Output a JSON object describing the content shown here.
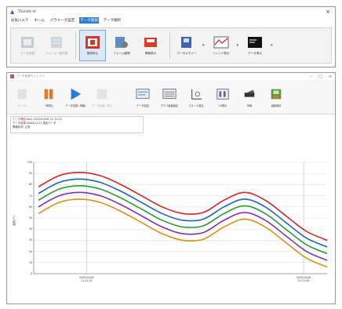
{
  "window_top": {
    "title": "TSchiitt IV",
    "close_glyph": "×",
    "menu": [
      "お気に入り",
      "ホーム",
      "パラメータ設定",
      "データ集録",
      "データ解析"
    ],
    "active_menu_index": 3,
    "ribbon": [
      {
        "label": "データ記録",
        "icon": "record-icon",
        "dim": true
      },
      {
        "label": "フォーム一覧作成",
        "icon": "form-icon",
        "dim": true
      },
      {
        "label": "集録停止",
        "icon": "stop-record-icon",
        "dim": false,
        "selected": true
      },
      {
        "label": "フォーム管理",
        "icon": "form-manage-icon",
        "dim": false
      },
      {
        "label": "警報表示",
        "icon": "alarm-icon",
        "dim": false
      },
      {
        "label": "データメモリー",
        "icon": "memory-icon",
        "dim": false,
        "dropdown": true
      },
      {
        "label": "トレンド表示",
        "icon": "trend-icon",
        "dim": false,
        "dropdown": true
      },
      {
        "label": "データ表示",
        "icon": "data-display-icon",
        "dim": false,
        "dropdown": true
      }
    ]
  },
  "window_app": {
    "title": "データ記録ウィンドウ",
    "toolbar": [
      {
        "label": "ファイル",
        "icon": "file-icon",
        "dim": true
      },
      {
        "label": "一時停止",
        "icon": "pause-icon",
        "dim": false
      },
      {
        "label": "データ記録 / 開始",
        "icon": "play-icon",
        "dim": false
      },
      {
        "label": "データ記録 / 停止",
        "icon": "stop-icon",
        "dim": true
      },
      {
        "label": "データ設定",
        "icon": "data-setting-icon",
        "dim": false
      },
      {
        "label": "グラフ画面設定",
        "icon": "graph-setting-icon",
        "dim": false
      },
      {
        "label": "スケール設定",
        "icon": "scale-icon",
        "dim": false
      },
      {
        "label": "CH表示",
        "icon": "ch-icon",
        "dim": false
      },
      {
        "label": "印刷",
        "icon": "print-icon",
        "dim": false
      },
      {
        "label": "画像保存",
        "icon": "save-image-icon",
        "dim": false
      }
    ],
    "info": {
      "line1_red": "データ開始",
      "line1_rest": "  No.1          2020/10/26  11:11:15",
      "line2": "データ名称      AAAA-1111  測定データ",
      "line3": "警報状況:  正常"
    }
  },
  "chart_data": {
    "type": "line",
    "yticks": [
      "100",
      "90",
      "80",
      "70",
      "60",
      "50",
      "40",
      "30",
      "20",
      "10",
      "0"
    ],
    "ylim": [
      0,
      100
    ],
    "ylabel": "温度(℃)",
    "xticks": [
      {
        "label_line1": "2020/10/26",
        "label_line2": "11:11:15",
        "pos": 0.18
      },
      {
        "label_line1": "2020/10/26",
        "label_line2": "11:11:45",
        "pos": 0.92
      }
    ],
    "grid": true,
    "series": [
      {
        "color": "#e02020",
        "values": [
          78,
          88,
          91,
          88,
          80,
          70,
          60,
          54,
          55,
          66,
          73,
          66,
          52,
          38,
          30
        ]
      },
      {
        "color": "#2060d0",
        "values": [
          72,
          82,
          85,
          82,
          74,
          64,
          54,
          48,
          49,
          60,
          67,
          60,
          46,
          32,
          24
        ]
      },
      {
        "color": "#20a030",
        "values": [
          66,
          76,
          79,
          76,
          68,
          58,
          48,
          42,
          43,
          54,
          61,
          54,
          40,
          26,
          18
        ]
      },
      {
        "color": "#8030b0",
        "values": [
          60,
          70,
          73,
          70,
          62,
          52,
          42,
          36,
          37,
          48,
          55,
          48,
          34,
          20,
          12
        ]
      },
      {
        "color": "#e09010",
        "values": [
          54,
          64,
          67,
          64,
          56,
          46,
          36,
          30,
          31,
          42,
          49,
          42,
          28,
          14,
          6
        ]
      }
    ]
  }
}
